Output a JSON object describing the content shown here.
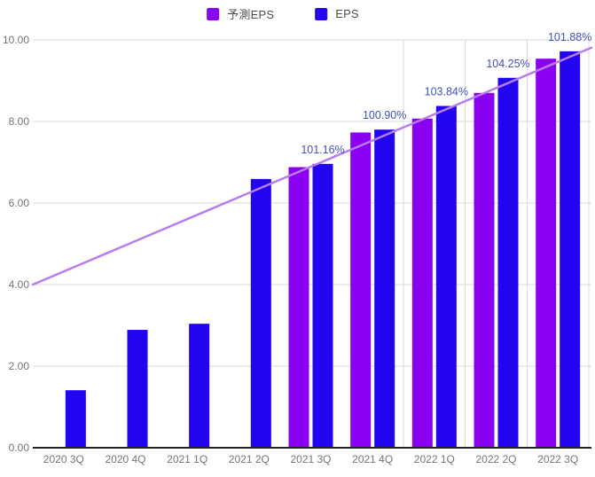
{
  "legend": {
    "items": [
      {
        "label": "予測EPS",
        "color": "#8a00f0"
      },
      {
        "label": "EPS",
        "color": "#2204ee"
      }
    ]
  },
  "chart_data": {
    "type": "bar",
    "title": "",
    "categories": [
      "2020 3Q",
      "2020 4Q",
      "2021 1Q",
      "2021 2Q",
      "2021 3Q",
      "2021 4Q",
      "2022 1Q",
      "2022 2Q",
      "2022 3Q"
    ],
    "series": [
      {
        "name": "予測EPS",
        "color": "#8a00f0",
        "values": [
          null,
          null,
          null,
          null,
          6.88,
          7.73,
          8.07,
          8.7,
          9.54
        ]
      },
      {
        "name": "EPS",
        "color": "#2204ee",
        "values": [
          1.41,
          2.89,
          3.04,
          6.59,
          6.96,
          7.8,
          8.38,
          9.07,
          9.72
        ]
      }
    ],
    "annotations": {
      "color": "#3f51b5",
      "values": [
        "",
        "",
        "",
        "",
        "101.16%",
        "100.90%",
        "103.84%",
        "104.25%",
        "101.88%"
      ]
    },
    "trendline": {
      "color": "#b77cee",
      "start_value": 4.0,
      "end_value": 9.81
    },
    "y_axis": {
      "min": 0,
      "max": 10,
      "tick_step": 2,
      "tick_labels": [
        "0.00",
        "2.00",
        "4.00",
        "6.00",
        "8.00",
        "10.00"
      ],
      "label_color": "#757575"
    },
    "x_axis": {
      "label_color": "#757575",
      "axis_line_color": "#212121"
    },
    "grid": {
      "color": "#dadada",
      "horizontal": true,
      "vertical_boundaries": [
        6,
        7,
        8,
        9
      ]
    },
    "legend_position": "top"
  }
}
